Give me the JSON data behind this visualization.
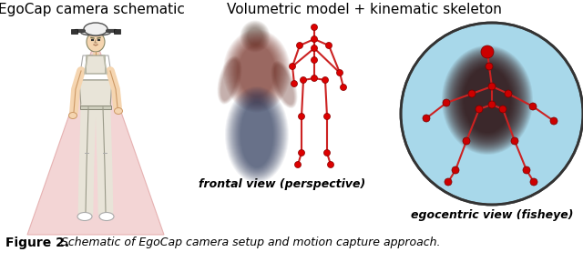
{
  "title_left": "EgoCap camera schematic",
  "title_right": "Volumetric model + kinematic skeleton",
  "label_center": "frontal view (perspective)",
  "label_right": "egocentric view (fisheye)",
  "bg_color": "#ffffff",
  "cone_color": "#f0c8c8",
  "cone_edge_color": "#e0a0a0",
  "skeleton_color": "#cc2222",
  "joint_color": "#dd0000",
  "fisheye_bg": "#a8d8ea",
  "title_fontsize": 11,
  "label_fontsize": 9
}
